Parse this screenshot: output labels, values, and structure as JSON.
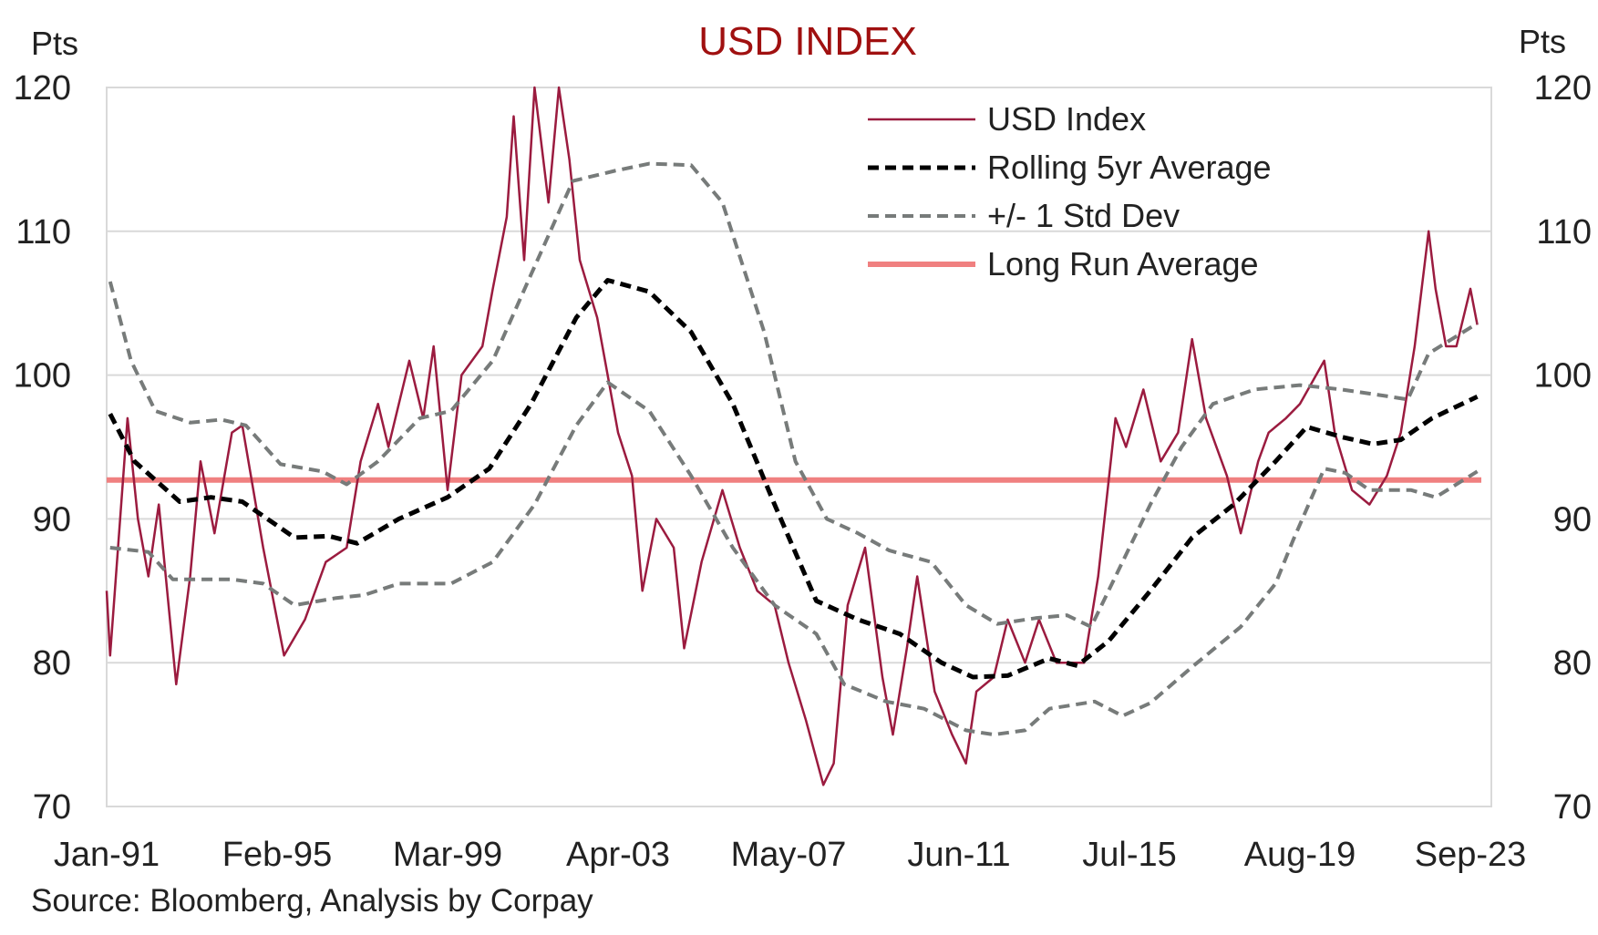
{
  "chart_data": {
    "type": "line",
    "title": "USD INDEX",
    "ylabel_left": "Pts",
    "ylabel_right": "Pts",
    "source": "Source: Bloomberg, Analysis by Corpay",
    "ylim": [
      70,
      120
    ],
    "yticks": [
      70,
      80,
      90,
      100,
      110,
      120
    ],
    "xlim": [
      "1991-01",
      "2023-12"
    ],
    "xticks": [
      {
        "date": "1991-01",
        "label": "Jan-91"
      },
      {
        "date": "1995-02",
        "label": "Feb-95"
      },
      {
        "date": "1999-03",
        "label": "Mar-99"
      },
      {
        "date": "2003-04",
        "label": "Apr-03"
      },
      {
        "date": "2007-05",
        "label": "May-07"
      },
      {
        "date": "2011-06",
        "label": "Jun-11"
      },
      {
        "date": "2015-07",
        "label": "Jul-15"
      },
      {
        "date": "2019-08",
        "label": "Aug-19"
      },
      {
        "date": "2023-09",
        "label": "Sep-23"
      }
    ],
    "grid": true,
    "legend_position": "top-right",
    "series": [
      {
        "name": "USD Index",
        "color": "#9b1b3f",
        "style": "solid-thin",
        "points": [
          [
            "1991-01",
            85
          ],
          [
            "1991-02",
            80.5
          ],
          [
            "1991-07",
            97
          ],
          [
            "1991-10",
            90
          ],
          [
            "1992-01",
            86
          ],
          [
            "1992-04",
            91
          ],
          [
            "1992-09",
            78.5
          ],
          [
            "1993-01",
            86
          ],
          [
            "1993-04",
            94
          ],
          [
            "1993-08",
            89
          ],
          [
            "1994-01",
            96
          ],
          [
            "1994-04",
            96.5
          ],
          [
            "1994-10",
            88
          ],
          [
            "1995-04",
            80.5
          ],
          [
            "1995-10",
            83
          ],
          [
            "1996-04",
            87
          ],
          [
            "1996-10",
            88
          ],
          [
            "1997-02",
            94
          ],
          [
            "1997-07",
            98
          ],
          [
            "1997-10",
            95
          ],
          [
            "1998-04",
            101
          ],
          [
            "1998-08",
            97
          ],
          [
            "1998-11",
            102
          ],
          [
            "1999-03",
            92
          ],
          [
            "1999-07",
            100
          ],
          [
            "2000-01",
            102
          ],
          [
            "2000-04",
            106
          ],
          [
            "2000-08",
            111
          ],
          [
            "2000-10",
            118
          ],
          [
            "2001-01",
            108
          ],
          [
            "2001-04",
            120
          ],
          [
            "2001-08",
            112
          ],
          [
            "2001-11",
            120
          ],
          [
            "2002-02",
            115
          ],
          [
            "2002-05",
            108
          ],
          [
            "2002-10",
            104
          ],
          [
            "2003-01",
            100
          ],
          [
            "2003-04",
            96
          ],
          [
            "2003-08",
            93
          ],
          [
            "2003-11",
            85
          ],
          [
            "2004-03",
            90
          ],
          [
            "2004-08",
            88
          ],
          [
            "2004-11",
            81
          ],
          [
            "2005-04",
            87
          ],
          [
            "2005-10",
            92
          ],
          [
            "2006-03",
            88
          ],
          [
            "2006-08",
            85
          ],
          [
            "2007-01",
            84
          ],
          [
            "2007-05",
            80
          ],
          [
            "2007-10",
            76
          ],
          [
            "2008-03",
            71.5
          ],
          [
            "2008-06",
            73
          ],
          [
            "2008-10",
            84
          ],
          [
            "2009-03",
            88
          ],
          [
            "2009-08",
            79
          ],
          [
            "2009-11",
            75
          ],
          [
            "2010-03",
            81
          ],
          [
            "2010-06",
            86
          ],
          [
            "2010-11",
            78
          ],
          [
            "2011-04",
            75
          ],
          [
            "2011-08",
            73
          ],
          [
            "2011-11",
            78
          ],
          [
            "2012-04",
            79
          ],
          [
            "2012-08",
            83
          ],
          [
            "2013-01",
            80
          ],
          [
            "2013-05",
            83
          ],
          [
            "2013-10",
            80
          ],
          [
            "2014-03",
            80
          ],
          [
            "2014-06",
            80
          ],
          [
            "2014-10",
            86
          ],
          [
            "2015-03",
            97
          ],
          [
            "2015-06",
            95
          ],
          [
            "2015-11",
            99
          ],
          [
            "2016-04",
            94
          ],
          [
            "2016-09",
            96
          ],
          [
            "2017-01",
            102.5
          ],
          [
            "2017-05",
            97
          ],
          [
            "2017-11",
            93
          ],
          [
            "2018-03",
            89
          ],
          [
            "2018-08",
            94
          ],
          [
            "2018-11",
            96
          ],
          [
            "2019-04",
            97
          ],
          [
            "2019-08",
            98
          ],
          [
            "2020-03",
            101
          ],
          [
            "2020-06",
            96
          ],
          [
            "2020-11",
            92
          ],
          [
            "2021-04",
            91
          ],
          [
            "2021-09",
            93
          ],
          [
            "2022-01",
            96
          ],
          [
            "2022-05",
            102
          ],
          [
            "2022-09",
            110
          ],
          [
            "2022-11",
            106
          ],
          [
            "2023-02",
            102
          ],
          [
            "2023-05",
            102
          ],
          [
            "2023-09",
            106
          ],
          [
            "2023-11",
            103.5
          ]
        ]
      },
      {
        "name": "Rolling 5yr Average",
        "color": "#000000",
        "style": "dashed-thick",
        "points": [
          [
            "1991-02",
            97.3
          ],
          [
            "1991-09",
            94
          ],
          [
            "1992-10",
            91.2
          ],
          [
            "1993-07",
            91.5
          ],
          [
            "1994-04",
            91.2
          ],
          [
            "1995-07",
            88.7
          ],
          [
            "1996-05",
            88.8
          ],
          [
            "1997-01",
            88.3
          ],
          [
            "1998-01",
            90
          ],
          [
            "1999-03",
            91.5
          ],
          [
            "2000-03",
            93.5
          ],
          [
            "2001-03",
            98
          ],
          [
            "2002-04",
            104
          ],
          [
            "2003-01",
            106.6
          ],
          [
            "2004-01",
            105.8
          ],
          [
            "2005-01",
            103
          ],
          [
            "2006-01",
            98
          ],
          [
            "2007-01",
            91
          ],
          [
            "2008-01",
            84.3
          ],
          [
            "2009-01",
            83
          ],
          [
            "2010-01",
            82
          ],
          [
            "2011-01",
            80
          ],
          [
            "2011-10",
            79
          ],
          [
            "2012-08",
            79.1
          ],
          [
            "2013-08",
            80.3
          ],
          [
            "2014-04",
            79.8
          ],
          [
            "2015-01",
            81.5
          ],
          [
            "2016-01",
            85
          ],
          [
            "2017-01",
            88.7
          ],
          [
            "2018-01",
            91
          ],
          [
            "2019-01",
            94
          ],
          [
            "2019-10",
            96.4
          ],
          [
            "2020-08",
            95.7
          ],
          [
            "2021-05",
            95.2
          ],
          [
            "2022-01",
            95.5
          ],
          [
            "2022-10",
            97
          ],
          [
            "2023-11",
            98.5
          ]
        ]
      },
      {
        "name": "+/- 1 Std Dev",
        "color": "#777b7a",
        "style": "dashed",
        "points": [
          [
            "1991-02",
            106.5
          ],
          [
            "1991-08",
            101
          ],
          [
            "1992-03",
            97.5
          ],
          [
            "1993-01",
            96.7
          ],
          [
            "1993-10",
            96.9
          ],
          [
            "1994-05",
            96.5
          ],
          [
            "1995-03",
            93.8
          ],
          [
            "1996-03",
            93.3
          ],
          [
            "1996-10",
            92.4
          ],
          [
            "1997-07",
            94
          ],
          [
            "1998-07",
            97
          ],
          [
            "1999-04",
            97.5
          ],
          [
            "2000-04",
            101
          ],
          [
            "2001-03",
            107
          ],
          [
            "2002-03",
            113.5
          ],
          [
            "2003-03",
            114.2
          ],
          [
            "2004-01",
            114.7
          ],
          [
            "2005-01",
            114.6
          ],
          [
            "2005-10",
            112
          ],
          [
            "2006-10",
            103
          ],
          [
            "2007-07",
            94
          ],
          [
            "2008-04",
            90
          ],
          [
            "2009-01",
            89
          ],
          [
            "2009-10",
            87.8
          ],
          [
            "2010-10",
            87
          ],
          [
            "2011-08",
            84
          ],
          [
            "2012-05",
            82.7
          ],
          [
            "2013-04",
            83.1
          ],
          [
            "2014-01",
            83.3
          ],
          [
            "2014-08",
            82.5
          ],
          [
            "2015-03",
            86
          ],
          [
            "2016-01",
            91
          ],
          [
            "2016-10",
            95
          ],
          [
            "2017-07",
            98
          ],
          [
            "2018-07",
            99
          ],
          [
            "2019-08",
            99.3
          ],
          [
            "2020-08",
            99
          ],
          [
            "2021-10",
            98.5
          ],
          [
            "2022-03",
            98.3
          ],
          [
            "2022-09",
            101.5
          ],
          [
            "2023-11",
            103.6
          ]
        ]
      },
      {
        "name": "+/- 1 Std Dev (lower)",
        "color": "#777b7a",
        "style": "dashed",
        "points": [
          [
            "1991-02",
            88
          ],
          [
            "1992-01",
            87.7
          ],
          [
            "1992-08",
            85.8
          ],
          [
            "1994-01",
            85.8
          ],
          [
            "1994-10",
            85.5
          ],
          [
            "1995-07",
            84
          ],
          [
            "1996-07",
            84.5
          ],
          [
            "1997-03",
            84.7
          ],
          [
            "1998-01",
            85.5
          ],
          [
            "1999-04",
            85.5
          ],
          [
            "2000-04",
            87
          ],
          [
            "2001-04",
            91
          ],
          [
            "2002-04",
            96.5
          ],
          [
            "2003-01",
            99.5
          ],
          [
            "2004-01",
            97.5
          ],
          [
            "2005-01",
            93
          ],
          [
            "2006-01",
            88
          ],
          [
            "2007-01",
            84
          ],
          [
            "2008-01",
            82
          ],
          [
            "2008-09",
            78.5
          ],
          [
            "2009-09",
            77.3
          ],
          [
            "2010-08",
            76.8
          ],
          [
            "2011-08",
            75.3
          ],
          [
            "2012-04",
            75
          ],
          [
            "2013-01",
            75.3
          ],
          [
            "2013-08",
            76.8
          ],
          [
            "2014-09",
            77.3
          ],
          [
            "2015-05",
            76.3
          ],
          [
            "2016-01",
            77.2
          ],
          [
            "2017-01",
            79.7
          ],
          [
            "2018-03",
            82.5
          ],
          [
            "2019-01",
            85.5
          ],
          [
            "2019-06",
            88.5
          ],
          [
            "2020-03",
            93.5
          ],
          [
            "2020-09",
            93.2
          ],
          [
            "2021-04",
            92
          ],
          [
            "2022-04",
            92
          ],
          [
            "2022-11",
            91.5
          ],
          [
            "2023-11",
            93.3
          ]
        ]
      },
      {
        "name": "Long Run Average",
        "color": "#f08080",
        "style": "solid-thick",
        "value": 92.7
      }
    ],
    "legend": [
      "USD Index",
      "Rolling 5yr Average",
      "+/- 1 Std Dev",
      "Long Run Average"
    ],
    "title_color": "#a01010"
  }
}
